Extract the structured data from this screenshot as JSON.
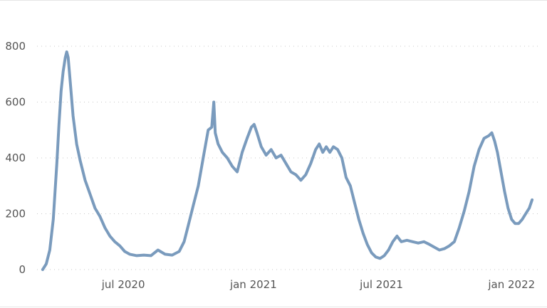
{
  "chart_data": {
    "type": "line",
    "title": "",
    "xlabel": "",
    "ylabel": "",
    "ylim": [
      0,
      800
    ],
    "xlim": [
      "2020-03-01",
      "2022-02-10"
    ],
    "grid": true,
    "yticks": [
      {
        "value": 0,
        "label": "0"
      },
      {
        "value": 200,
        "label": "200"
      },
      {
        "value": 400,
        "label": "400"
      },
      {
        "value": 600,
        "label": "600"
      },
      {
        "value": 800,
        "label": "800"
      }
    ],
    "xticks": [
      {
        "date": "2020-07-01",
        "label": "jul 2020"
      },
      {
        "date": "2021-01-01",
        "label": "jan 2021"
      },
      {
        "date": "2021-07-01",
        "label": "jul 2021"
      },
      {
        "date": "2022-01-01",
        "label": "jan 2022"
      }
    ],
    "colors": {
      "line": "#7a9bbd"
    },
    "series": [
      {
        "points": [
          [
            "2020-03-09",
            0
          ],
          [
            "2020-03-14",
            20
          ],
          [
            "2020-03-19",
            70
          ],
          [
            "2020-03-24",
            180
          ],
          [
            "2020-03-29",
            380
          ],
          [
            "2020-04-01",
            520
          ],
          [
            "2020-04-04",
            640
          ],
          [
            "2020-04-07",
            710
          ],
          [
            "2020-04-10",
            760
          ],
          [
            "2020-04-12",
            780
          ],
          [
            "2020-04-14",
            760
          ],
          [
            "2020-04-17",
            670
          ],
          [
            "2020-04-21",
            550
          ],
          [
            "2020-04-26",
            450
          ],
          [
            "2020-05-01",
            390
          ],
          [
            "2020-05-08",
            320
          ],
          [
            "2020-05-15",
            270
          ],
          [
            "2020-05-22",
            220
          ],
          [
            "2020-05-29",
            190
          ],
          [
            "2020-06-05",
            150
          ],
          [
            "2020-06-12",
            120
          ],
          [
            "2020-06-19",
            100
          ],
          [
            "2020-06-26",
            85
          ],
          [
            "2020-07-03",
            65
          ],
          [
            "2020-07-10",
            55
          ],
          [
            "2020-07-20",
            50
          ],
          [
            "2020-07-30",
            52
          ],
          [
            "2020-08-09",
            50
          ],
          [
            "2020-08-19",
            70
          ],
          [
            "2020-08-29",
            55
          ],
          [
            "2020-09-08",
            52
          ],
          [
            "2020-09-18",
            65
          ],
          [
            "2020-09-25",
            100
          ],
          [
            "2020-10-01",
            160
          ],
          [
            "2020-10-08",
            230
          ],
          [
            "2020-10-15",
            300
          ],
          [
            "2020-10-22",
            400
          ],
          [
            "2020-10-29",
            500
          ],
          [
            "2020-11-03",
            510
          ],
          [
            "2020-11-06",
            600
          ],
          [
            "2020-11-08",
            490
          ],
          [
            "2020-11-12",
            450
          ],
          [
            "2020-11-18",
            420
          ],
          [
            "2020-11-25",
            400
          ],
          [
            "2020-12-02",
            370
          ],
          [
            "2020-12-09",
            350
          ],
          [
            "2020-12-16",
            420
          ],
          [
            "2020-12-23",
            470
          ],
          [
            "2020-12-29",
            510
          ],
          [
            "2021-01-02",
            520
          ],
          [
            "2021-01-06",
            490
          ],
          [
            "2021-01-12",
            440
          ],
          [
            "2021-01-19",
            410
          ],
          [
            "2021-01-26",
            430
          ],
          [
            "2021-02-02",
            400
          ],
          [
            "2021-02-09",
            410
          ],
          [
            "2021-02-16",
            380
          ],
          [
            "2021-02-23",
            350
          ],
          [
            "2021-03-02",
            340
          ],
          [
            "2021-03-09",
            320
          ],
          [
            "2021-03-16",
            340
          ],
          [
            "2021-03-23",
            380
          ],
          [
            "2021-03-30",
            430
          ],
          [
            "2021-04-04",
            450
          ],
          [
            "2021-04-09",
            420
          ],
          [
            "2021-04-14",
            440
          ],
          [
            "2021-04-19",
            420
          ],
          [
            "2021-04-24",
            440
          ],
          [
            "2021-04-30",
            430
          ],
          [
            "2021-05-06",
            400
          ],
          [
            "2021-05-12",
            330
          ],
          [
            "2021-05-18",
            300
          ],
          [
            "2021-05-24",
            240
          ],
          [
            "2021-05-30",
            180
          ],
          [
            "2021-06-05",
            130
          ],
          [
            "2021-06-11",
            90
          ],
          [
            "2021-06-17",
            60
          ],
          [
            "2021-06-23",
            45
          ],
          [
            "2021-06-29",
            40
          ],
          [
            "2021-07-05",
            50
          ],
          [
            "2021-07-11",
            70
          ],
          [
            "2021-07-17",
            100
          ],
          [
            "2021-07-23",
            120
          ],
          [
            "2021-07-29",
            100
          ],
          [
            "2021-08-06",
            105
          ],
          [
            "2021-08-14",
            100
          ],
          [
            "2021-08-22",
            95
          ],
          [
            "2021-08-30",
            100
          ],
          [
            "2021-09-07",
            90
          ],
          [
            "2021-09-14",
            80
          ],
          [
            "2021-09-21",
            70
          ],
          [
            "2021-09-28",
            75
          ],
          [
            "2021-10-05",
            85
          ],
          [
            "2021-10-12",
            100
          ],
          [
            "2021-10-19",
            150
          ],
          [
            "2021-10-26",
            210
          ],
          [
            "2021-11-02",
            280
          ],
          [
            "2021-11-09",
            370
          ],
          [
            "2021-11-16",
            430
          ],
          [
            "2021-11-23",
            470
          ],
          [
            "2021-11-30",
            480
          ],
          [
            "2021-12-04",
            490
          ],
          [
            "2021-12-08",
            460
          ],
          [
            "2021-12-12",
            420
          ],
          [
            "2021-12-17",
            350
          ],
          [
            "2021-12-22",
            280
          ],
          [
            "2021-12-27",
            220
          ],
          [
            "2022-01-01",
            180
          ],
          [
            "2022-01-06",
            165
          ],
          [
            "2022-01-11",
            165
          ],
          [
            "2022-01-16",
            180
          ],
          [
            "2022-01-21",
            200
          ],
          [
            "2022-01-26",
            220
          ],
          [
            "2022-01-30",
            250
          ]
        ]
      }
    ]
  }
}
